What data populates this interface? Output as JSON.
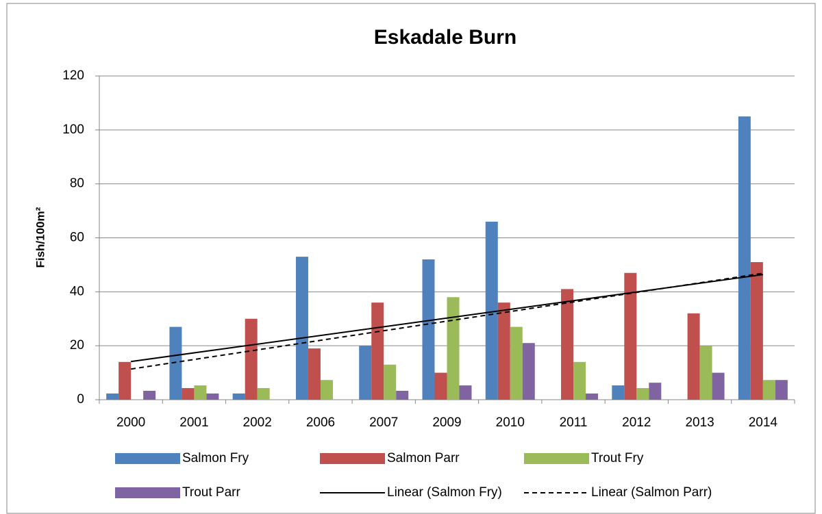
{
  "chart_data": {
    "type": "bar",
    "title": "Eskadale Burn",
    "y_label": "Fish/100m²",
    "categories": [
      "2000",
      "2001",
      "2002",
      "2006",
      "2007",
      "2009",
      "2010",
      "2011",
      "2012",
      "2013",
      "2014"
    ],
    "series": [
      {
        "name": "Salmon Fry",
        "color": "#4f81bd",
        "values": [
          2.3,
          27,
          2.3,
          53,
          20,
          52,
          66,
          0,
          5.3,
          0,
          105
        ]
      },
      {
        "name": "Salmon Parr",
        "color": "#c0504d",
        "values": [
          14,
          4.3,
          30,
          19,
          36,
          10,
          36,
          41,
          47,
          32,
          51
        ]
      },
      {
        "name": "Trout Fry",
        "color": "#9bbb59",
        "values": [
          0,
          5.3,
          4.3,
          7.3,
          13,
          38,
          27,
          14,
          4.3,
          20,
          7.3
        ]
      },
      {
        "name": "Trout Parr",
        "color": "#8064a2",
        "values": [
          3.3,
          2.3,
          0,
          0,
          3.3,
          5.3,
          21,
          2.3,
          6.3,
          10,
          7.3
        ]
      }
    ],
    "trendlines": [
      {
        "name": "Linear (Salmon Fry)",
        "series": 0,
        "dashed": false,
        "color": "#000000"
      },
      {
        "name": "Linear (Salmon Parr)",
        "series": 1,
        "dashed": true,
        "color": "#000000"
      }
    ],
    "ylim": [
      0,
      120
    ],
    "yticks": [
      0,
      20,
      40,
      60,
      80,
      100,
      120
    ],
    "grid": true
  }
}
